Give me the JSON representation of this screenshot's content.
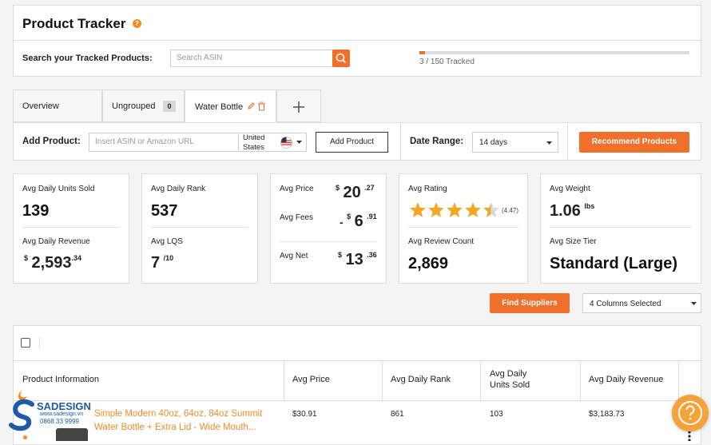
{
  "header": {
    "title": "Product Tracker",
    "help_glyph": "?",
    "search_label": "Search your Tracked Products:",
    "search_placeholder": "Search ASIN",
    "tracked_text": "3 / 150 Tracked",
    "tracked_fraction": 0.02
  },
  "tabs": [
    {
      "label": "Overview"
    },
    {
      "label": "Ungrouped",
      "count": "0"
    },
    {
      "label": "Water Bottle"
    },
    {
      "label": "+"
    }
  ],
  "add_product": {
    "label": "Add Product:",
    "placeholder": "Insert ASIN or Amazon URL",
    "marketplace_line1": "United",
    "marketplace_line2": "States",
    "button": "Add Product",
    "date_range_label": "Date Range:",
    "date_range_value": "14 days",
    "recommend_button": "Recommend Products"
  },
  "stats": {
    "units_label": "Avg Daily Units Sold",
    "units_value": "139",
    "revenue_label": "Avg Daily Revenue",
    "revenue_currency": "$",
    "revenue_whole": "2,593",
    "revenue_cents": ".34",
    "rank_label": "Avg Daily Rank",
    "rank_value": "537",
    "lqs_label": "Avg LQS",
    "lqs_value": "7",
    "lqs_denom": "/10",
    "price_label": "Avg Price",
    "price_currency": "$",
    "price_whole": "20",
    "price_cents": ".27",
    "fees_label": "Avg Fees",
    "fees_sign": "-",
    "fees_currency": "$",
    "fees_whole": "6",
    "fees_cents": ".91",
    "net_label": "Avg Net",
    "net_currency": "$",
    "net_whole": "13",
    "net_cents": ".36",
    "rating_label": "Avg Rating",
    "rating_value": 4.47,
    "rating_text": "(4.47)",
    "review_label": "Avg Review Count",
    "review_value": "2,869",
    "weight_label": "Avg Weight",
    "weight_value": "1.06",
    "weight_unit": "lbs",
    "size_label": "Avg Size Tier",
    "size_value": "Standard (Large)"
  },
  "toolbar": {
    "find_suppliers": "Find Suppliers",
    "columns_selected": "4 Columns Selected"
  },
  "table": {
    "headers": [
      "Product Information",
      "Avg Price",
      "Avg Daily Rank",
      "Avg Daily",
      "Units Sold",
      "Avg Daily Revenue"
    ],
    "rows": [
      {
        "title_line1": "Simple Modern 40oz, 64oz, 84oz Summit",
        "title_line2": "Water Bottle + Extra Lid - Wide Mouth...",
        "price": "$30.91",
        "rank": "861",
        "units": "103",
        "revenue": "$3,183.73"
      }
    ]
  },
  "watermark": {
    "brand": "SADESIGN",
    "url": "www.sadesign.vn",
    "phone": "0868 33 9999"
  },
  "colors": {
    "accent": "#f06f2a",
    "star": "#f5a623"
  },
  "icons": [
    "help-icon",
    "search-icon",
    "edit-icon",
    "trash-icon",
    "plus-icon",
    "us-flag-icon",
    "chevron-down-icon",
    "star-icon",
    "checkbox-icon",
    "more-icon",
    "help-chat-icon"
  ]
}
